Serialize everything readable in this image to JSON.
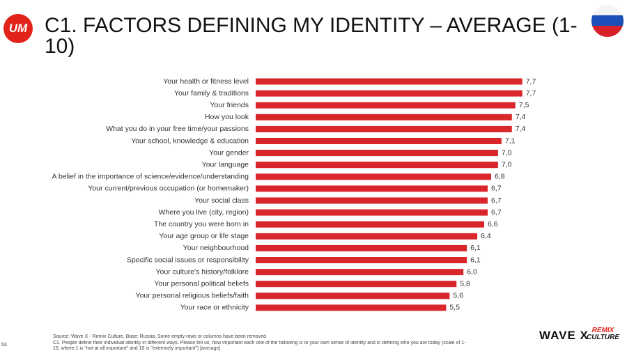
{
  "chart_data": {
    "type": "bar",
    "orientation": "horizontal",
    "title": "C1. FACTORS DEFINING MY IDENTITY – AVERAGE (1-10)",
    "categories": [
      "Your health or fitness level",
      "Your family & traditions",
      "Your friends",
      "How you look",
      "What you do in your free time/your passions",
      "Your school, knowledge & education",
      "Your gender",
      "Your language",
      "A belief in the importance of science/evidence/understanding",
      "Your current/previous occupation (or homemaker)",
      "Your social class",
      "Where you live (city, region)",
      "The country you were born in",
      "Your age group or life stage",
      "Your neighbourhood",
      "Specific social issues or responsibility",
      "Your culture's history/folklore",
      "Your personal political beliefs",
      "Your personal religious beliefs/faith",
      "Your race or ethnicity"
    ],
    "values": [
      7.7,
      7.7,
      7.5,
      7.4,
      7.4,
      7.1,
      7.0,
      7.0,
      6.8,
      6.7,
      6.7,
      6.7,
      6.6,
      6.4,
      6.1,
      6.1,
      6.0,
      5.8,
      5.6,
      5.5
    ],
    "value_labels": [
      "7,7",
      "7,7",
      "7,5",
      "7,4",
      "7,4",
      "7,1",
      "7,0",
      "7,0",
      "6,8",
      "6,7",
      "6,7",
      "6,7",
      "6,6",
      "6,4",
      "6,1",
      "6,1",
      "6,0",
      "5,8",
      "5,6",
      "5,5"
    ],
    "color": "#d9262b"
  },
  "logos": {
    "um": "UM",
    "wave": "WAVE X",
    "remix_top": "REMIX",
    "remix_bottom": "CULTURE"
  },
  "page_number": "53",
  "source": "Source: Wave X - Remix Culture. Base:      Russia; Some empty rows or columns have been removed",
  "note": "C1. People define their individual identity in different ways. Please tell us, how important each one of the following is to your own sense of identity and in defining who you are today (scale of 1-10, where 1 is \"not at all important\" and 10 is \"extremely important\") [average]"
}
